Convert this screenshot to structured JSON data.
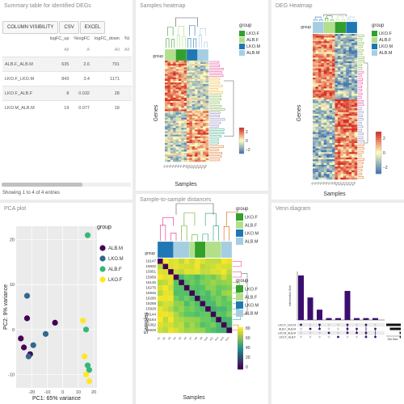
{
  "summary_panel": {
    "title": "Summary table for identified DEGs",
    "buttons": [
      "COLUMN VISIBILITY",
      "CSV",
      "EXCEL"
    ],
    "columns": [
      "",
      "logFC_up",
      "%logFC",
      "logFC_down",
      "%l"
    ],
    "filters": [
      "",
      "All",
      "A",
      "All",
      "All"
    ],
    "rows": [
      {
        "name": "ALB.F_ALB.M",
        "up": "635",
        "pct": "2.6",
        "down": "791"
      },
      {
        "name": "LKO.F_LKO.M",
        "up": "843",
        "pct": "3.4",
        "down": "1171"
      },
      {
        "name": "LKO.F_ALB.F",
        "up": "8",
        "pct": "0.032",
        "down": "28"
      },
      {
        "name": "LKO.M_ALB.M",
        "up": "19",
        "pct": "0.077",
        "down": "18"
      }
    ],
    "footer": "Showing 1 to 4 of 4 entries"
  },
  "samples_heatmap_panel": {
    "title": "Samples heatmap",
    "group_label": "group",
    "legend_title": "group",
    "legend": [
      "LKO.F",
      "ALB.F",
      "LKO.M",
      "ALB.M"
    ],
    "legend_colors": [
      "#33a02c",
      "#b2df8a",
      "#1f78b4",
      "#a6cee3"
    ],
    "ylabel": "Genes",
    "xlabel": "Samples",
    "scale_ticks": [
      "2",
      "0",
      "−2"
    ]
  },
  "deg_heatmap_panel": {
    "title": "DEG Heatmap",
    "group_label": "group",
    "legend_title": "group",
    "legend": [
      "LKO.F",
      "ALB.F",
      "LKO.M",
      "ALB.M"
    ],
    "legend_colors": [
      "#33a02c",
      "#b2df8a",
      "#1f78b4",
      "#a6cee3"
    ],
    "ylabel": "Genes",
    "xlabel": "Samples",
    "scale_ticks": [
      "2",
      "0",
      "−2"
    ]
  },
  "pca_panel": {
    "title": "PCA plot",
    "legend_title": "group",
    "legend": [
      "ALB.M",
      "LKO.M",
      "ALB.F",
      "LKO.F"
    ],
    "legend_colors": [
      "#440154",
      "#31688e",
      "#35b779",
      "#fde725"
    ]
  },
  "distance_panel": {
    "title": "Sample-to-sample distances",
    "group_label": "group",
    "legend_title": "group",
    "legend": [
      "LKO.F",
      "ALB.F",
      "LKO.M",
      "ALB.M"
    ],
    "legend_colors": [
      "#33a02c",
      "#b2df8a",
      "#1f78b4",
      "#a6cee3"
    ],
    "row_labels": [
      "16147",
      "15932",
      "15951",
      "15959",
      "16145",
      "16275",
      "15946",
      "16260",
      "16268",
      "15928",
      "16144",
      "16164",
      "16362",
      "15929"
    ],
    "ylabel": "Samples",
    "xlabel": "Samples",
    "scale_ticks": [
      "80",
      "60",
      "40",
      "20",
      "0"
    ]
  },
  "venn_panel": {
    "title": "Venn diagram",
    "ylabel": "Intersection Size",
    "set_labels": [
      "LKO.F_LKO.M",
      "ALB.F_ALB.M",
      "LKO.M_ALB.M",
      "LKO.F_ALB.F"
    ],
    "xlabel": "Set Size",
    "bar_values": [
      0.95,
      0.48,
      0.22,
      0.04,
      0.04,
      0.62,
      0.04,
      0.04,
      0.04
    ],
    "set_size_values": [
      1.0,
      0.75,
      0.08,
      0.07
    ]
  },
  "chart_data": [
    {
      "type": "scatter",
      "title": "PCA plot",
      "xlabel": "PC1: 65% variance",
      "ylabel": "PC2: 9% variance",
      "xlim": [
        -30,
        22
      ],
      "ylim": [
        -13,
        23
      ],
      "xticks": [
        -20,
        -10,
        0,
        10,
        20
      ],
      "yticks": [
        -10,
        0,
        10,
        20
      ],
      "series": [
        {
          "name": "ALB.M",
          "color": "#440154",
          "points": [
            [
              -27,
              -2
            ],
            [
              -23,
              2.5
            ],
            [
              -21,
              -5.5
            ],
            [
              -25,
              -4
            ],
            [
              -5,
              1.5
            ]
          ]
        },
        {
          "name": "LKO.M",
          "color": "#31688e",
          "points": [
            [
              -23,
              7.5
            ],
            [
              -19,
              -3.5
            ],
            [
              -22,
              -6
            ],
            [
              -11,
              -1
            ]
          ]
        },
        {
          "name": "ALB.F",
          "color": "#35b779",
          "points": [
            [
              16,
              21
            ],
            [
              15,
              0
            ],
            [
              16,
              -8
            ],
            [
              17,
              -9
            ]
          ]
        },
        {
          "name": "LKO.F",
          "color": "#fde725",
          "points": [
            [
              13,
              2
            ],
            [
              14,
              -6
            ],
            [
              15,
              -10
            ],
            [
              17,
              -11.5
            ]
          ]
        }
      ]
    }
  ]
}
